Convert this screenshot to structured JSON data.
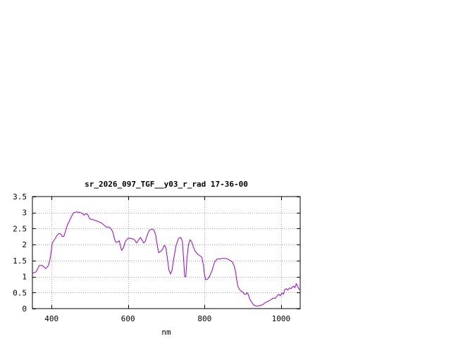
{
  "chart_data": {
    "type": "line",
    "title": "sr_2026_097_TGF__y03_r_rad 17-36-00",
    "xlabel": "nm",
    "ylabel": "",
    "xlim": [
      350,
      1050
    ],
    "ylim": [
      0,
      3.5
    ],
    "x_ticks": [
      400,
      600,
      800,
      1000
    ],
    "x_tick_labels": [
      "400",
      "600",
      "800",
      "1000"
    ],
    "y_ticks": [
      0,
      0.5,
      1,
      1.5,
      2,
      2.5,
      3,
      3.5
    ],
    "y_tick_labels": [
      "0",
      "0.5",
      "1",
      "1.5",
      "2",
      "2.5",
      "3",
      "3.5"
    ],
    "grid": true,
    "legend": "none",
    "series": [
      {
        "color": "#9400d3",
        "points": [
          [
            350,
            1.1
          ],
          [
            360,
            1.15
          ],
          [
            368,
            1.35
          ],
          [
            375,
            1.35
          ],
          [
            380,
            1.3
          ],
          [
            385,
            1.25
          ],
          [
            392,
            1.35
          ],
          [
            397,
            1.6
          ],
          [
            402,
            2.05
          ],
          [
            410,
            2.2
          ],
          [
            415,
            2.3
          ],
          [
            420,
            2.35
          ],
          [
            425,
            2.32
          ],
          [
            428,
            2.25
          ],
          [
            432,
            2.25
          ],
          [
            436,
            2.4
          ],
          [
            441,
            2.6
          ],
          [
            447,
            2.75
          ],
          [
            453,
            2.9
          ],
          [
            458,
            3.0
          ],
          [
            465,
            3.02
          ],
          [
            475,
            3.0
          ],
          [
            480,
            2.98
          ],
          [
            485,
            2.92
          ],
          [
            490,
            2.97
          ],
          [
            495,
            2.93
          ],
          [
            500,
            2.8
          ],
          [
            508,
            2.78
          ],
          [
            515,
            2.75
          ],
          [
            522,
            2.72
          ],
          [
            530,
            2.68
          ],
          [
            538,
            2.6
          ],
          [
            543,
            2.55
          ],
          [
            550,
            2.55
          ],
          [
            555,
            2.5
          ],
          [
            560,
            2.4
          ],
          [
            564,
            2.2
          ],
          [
            568,
            2.07
          ],
          [
            573,
            2.08
          ],
          [
            577,
            2.12
          ],
          [
            583,
            1.82
          ],
          [
            588,
            1.9
          ],
          [
            593,
            2.1
          ],
          [
            600,
            2.2
          ],
          [
            606,
            2.2
          ],
          [
            612,
            2.18
          ],
          [
            617,
            2.15
          ],
          [
            622,
            2.05
          ],
          [
            628,
            2.15
          ],
          [
            632,
            2.22
          ],
          [
            636,
            2.15
          ],
          [
            641,
            2.05
          ],
          [
            645,
            2.1
          ],
          [
            650,
            2.3
          ],
          [
            656,
            2.45
          ],
          [
            663,
            2.48
          ],
          [
            668,
            2.45
          ],
          [
            672,
            2.3
          ],
          [
            676,
            2.0
          ],
          [
            680,
            1.75
          ],
          [
            685,
            1.78
          ],
          [
            690,
            1.85
          ],
          [
            695,
            1.98
          ],
          [
            699,
            1.9
          ],
          [
            703,
            1.55
          ],
          [
            707,
            1.2
          ],
          [
            711,
            1.08
          ],
          [
            715,
            1.2
          ],
          [
            720,
            1.6
          ],
          [
            725,
            1.95
          ],
          [
            732,
            2.2
          ],
          [
            738,
            2.22
          ],
          [
            742,
            2.1
          ],
          [
            745,
            1.6
          ],
          [
            748,
            1.0
          ],
          [
            751,
            1.0
          ],
          [
            754,
            1.55
          ],
          [
            758,
            2.0
          ],
          [
            762,
            2.15
          ],
          [
            766,
            2.1
          ],
          [
            770,
            1.95
          ],
          [
            775,
            1.8
          ],
          [
            782,
            1.7
          ],
          [
            788,
            1.65
          ],
          [
            793,
            1.6
          ],
          [
            797,
            1.35
          ],
          [
            800,
            1.05
          ],
          [
            803,
            0.9
          ],
          [
            808,
            0.92
          ],
          [
            813,
            1.0
          ],
          [
            820,
            1.2
          ],
          [
            826,
            1.45
          ],
          [
            833,
            1.55
          ],
          [
            840,
            1.55
          ],
          [
            847,
            1.57
          ],
          [
            853,
            1.57
          ],
          [
            860,
            1.55
          ],
          [
            868,
            1.5
          ],
          [
            873,
            1.45
          ],
          [
            877,
            1.35
          ],
          [
            881,
            1.15
          ],
          [
            884,
            0.9
          ],
          [
            887,
            0.7
          ],
          [
            891,
            0.6
          ],
          [
            895,
            0.55
          ],
          [
            900,
            0.52
          ],
          [
            904,
            0.45
          ],
          [
            908,
            0.45
          ],
          [
            911,
            0.5
          ],
          [
            914,
            0.45
          ],
          [
            918,
            0.3
          ],
          [
            922,
            0.22
          ],
          [
            926,
            0.15
          ],
          [
            930,
            0.1
          ],
          [
            935,
            0.08
          ],
          [
            940,
            0.08
          ],
          [
            946,
            0.1
          ],
          [
            952,
            0.12
          ],
          [
            958,
            0.18
          ],
          [
            964,
            0.22
          ],
          [
            970,
            0.25
          ],
          [
            976,
            0.3
          ],
          [
            980,
            0.33
          ],
          [
            985,
            0.32
          ],
          [
            990,
            0.4
          ],
          [
            994,
            0.45
          ],
          [
            998,
            0.4
          ],
          [
            1002,
            0.48
          ],
          [
            1006,
            0.45
          ],
          [
            1010,
            0.6
          ],
          [
            1014,
            0.62
          ],
          [
            1018,
            0.58
          ],
          [
            1022,
            0.65
          ],
          [
            1026,
            0.62
          ],
          [
            1030,
            0.68
          ],
          [
            1033,
            0.7
          ],
          [
            1036,
            0.65
          ],
          [
            1040,
            0.78
          ],
          [
            1043,
            0.7
          ],
          [
            1047,
            0.6
          ],
          [
            1050,
            0.62
          ]
        ]
      }
    ]
  }
}
